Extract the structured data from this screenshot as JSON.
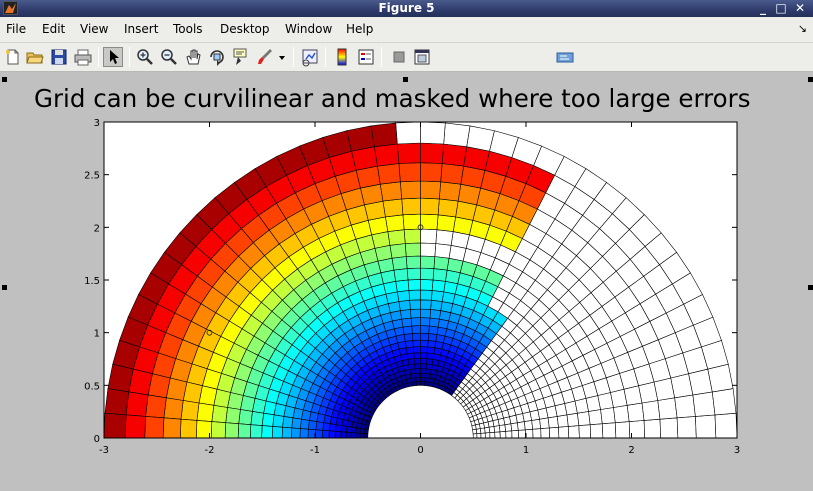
{
  "window": {
    "title": "Figure 5"
  },
  "menu": [
    "File",
    "Edit",
    "View",
    "Insert",
    "Tools",
    "Desktop",
    "Window",
    "Help"
  ],
  "toolbar_icons": [
    "new-figure-icon",
    "open-file-icon",
    "save-icon",
    "print-icon",
    "edit-plot-arrow-icon",
    "zoom-in-icon",
    "zoom-out-icon",
    "pan-hand-icon",
    "rotate-3d-icon",
    "data-cursor-icon",
    "brush-icon",
    "dropdown-arrow-icon",
    "link-plot-icon",
    "insert-colorbar-icon",
    "insert-legend-icon",
    "hide-plot-tools-icon",
    "show-plot-tools-icon",
    "dock-icon"
  ],
  "chart_data": {
    "type": "heatmap",
    "title": "Grid can be curvilinear and masked where too large errors",
    "xlabel": "",
    "ylabel": "",
    "xlim": [
      -3,
      3
    ],
    "ylim": [
      0,
      3
    ],
    "x_ticks": [
      "-3",
      "-2",
      "-1",
      "0",
      "1",
      "2",
      "3"
    ],
    "y_ticks": [
      "0",
      "0.5",
      "1",
      "1.5",
      "2",
      "2.5",
      "3"
    ],
    "grid": "curvilinear polar (radius 0.5 to 3, angle 0 to 180 degrees)",
    "colormap": "jet",
    "color_value": "radius (blue near r=0.5, dark red near r=3)",
    "masked_region": "cells left blank (white) where errors are too large, mostly angle < ~60 degrees",
    "markers": [
      [
        -2,
        1
      ],
      [
        0,
        2
      ]
    ]
  }
}
